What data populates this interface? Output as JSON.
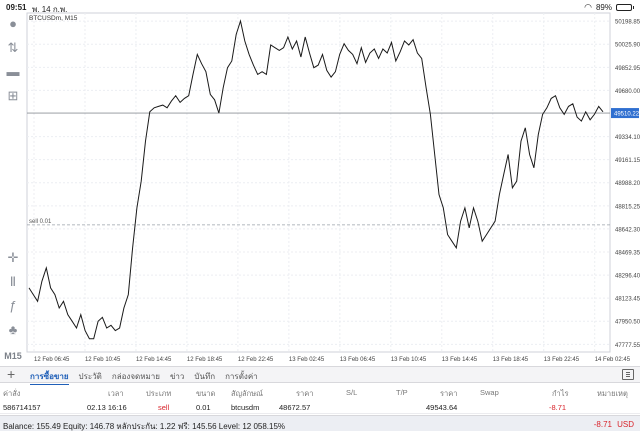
{
  "status_bar": {
    "time": "09:51",
    "date": "พ. 14 ก.พ.",
    "battery": "89%"
  },
  "chart": {
    "symbol_label": "BTCUSDm, M15",
    "timeframe_button": "M15",
    "sell_line_label": "sell 0.01",
    "current_price": "49510.22",
    "line_color": "#1a1a1a",
    "price_tag_color": "#2f6fd0"
  },
  "chart_data": {
    "type": "line",
    "price_axis_ticks": [
      "50198.85",
      "50025.90",
      "49852.95",
      "49680.00",
      "49510.22",
      "49334.10",
      "49161.15",
      "48988.20",
      "48815.25",
      "48642.30",
      "48469.35",
      "48296.40",
      "48123.45",
      "47950.50",
      "47777.55"
    ],
    "time_axis_ticks": [
      "12 Feb 06:45",
      "12 Feb 10:45",
      "12 Feb 14:45",
      "12 Feb 18:45",
      "12 Feb 22:45",
      "13 Feb 02:45",
      "13 Feb 06:45",
      "13 Feb 10:45",
      "13 Feb 14:45",
      "13 Feb 18:45",
      "13 Feb 22:45",
      "14 Feb 02:45"
    ],
    "ylim": [
      47720,
      50260
    ],
    "current_price": 49510.22,
    "sell_open_price": 48672.57,
    "values": [
      48200,
      48150,
      48100,
      48250,
      48350,
      48200,
      48150,
      48050,
      48100,
      48000,
      47950,
      47900,
      48000,
      47880,
      47820,
      47820,
      47950,
      47980,
      47900,
      47920,
      47880,
      47900,
      48050,
      48150,
      48500,
      48800,
      49000,
      49300,
      49520,
      49550,
      49560,
      49570,
      49550,
      49600,
      49640,
      49590,
      49620,
      49640,
      49800,
      49950,
      49880,
      49820,
      49650,
      49610,
      49510,
      49700,
      49850,
      49900,
      50100,
      50200,
      50050,
      49950,
      49870,
      49800,
      49820,
      49800,
      50020,
      50000,
      49980,
      50000,
      50080,
      49990,
      50050,
      49930,
      50080,
      49960,
      49850,
      49870,
      49950,
      49830,
      49780,
      49820,
      49950,
      50030,
      49980,
      49950,
      49880,
      50000,
      49890,
      49960,
      49990,
      49920,
      49990,
      49960,
      50040,
      49900,
      49970,
      50050,
      50020,
      50060,
      49960,
      49920,
      49700,
      49500,
      49200,
      48900,
      48800,
      48600,
      48550,
      48500,
      48700,
      48800,
      48650,
      48800,
      48700,
      48550,
      48600,
      48650,
      48700,
      48900,
      49050,
      49200,
      48950,
      49000,
      49300,
      49400,
      49200,
      49100,
      49350,
      49500,
      49550,
      49620,
      49640,
      49550,
      49500,
      49560,
      49580,
      49480,
      49450,
      49520,
      49460,
      49500,
      49560,
      49520
    ]
  },
  "tabs": {
    "items": [
      "การซื้อขาย",
      "ประวัติ",
      "กล่องจดหมาย",
      "ข่าว",
      "บันทึก",
      "การตั้งค่า"
    ]
  },
  "table": {
    "headers": [
      "ค่าสั่ง",
      "เวลา",
      "ประเภท",
      "ขนาด",
      "สัญลักษณ์",
      "ราคา",
      "S/L",
      "T/P",
      "ราคา",
      "Swap",
      "กำไร",
      "หมายเหตุ"
    ],
    "row": {
      "order": "586714157",
      "time": "02.13 16:16",
      "type": "sell",
      "size": "0.01",
      "symbol": "btcusdm",
      "open_price": "48672.57",
      "current_price": "49543.64",
      "profit": "-8.71"
    }
  },
  "balance_bar": {
    "text": "Balance: 155.49 Equity: 146.78 หลักประกัน: 1.22 ฟรี: 145.56 Level: 12 058.15%",
    "profit": "-8.71",
    "currency": "USD"
  }
}
